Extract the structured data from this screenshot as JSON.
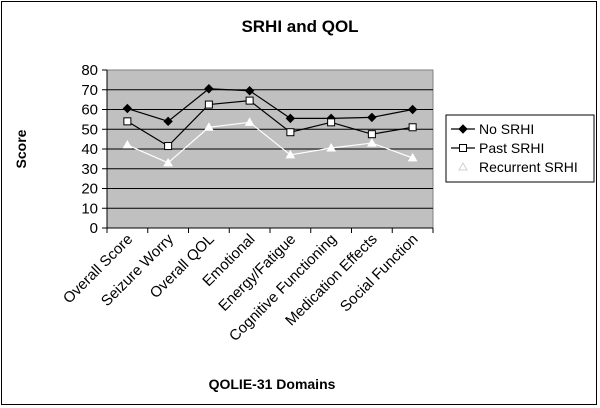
{
  "chart_data": {
    "type": "line",
    "title": "SRHI and QOL",
    "xlabel": "QOLIE-31 Domains",
    "ylabel": "Score",
    "ylim": [
      0,
      80
    ],
    "yticks": [
      "0",
      "10",
      "20",
      "30",
      "40",
      "50",
      "60",
      "70",
      "80"
    ],
    "grid": true,
    "legend_position": "right",
    "categories": [
      "Overall Score",
      "Seizure Worry",
      "Overall QOL",
      "Emotional",
      "Energy/Fatigue",
      "Cognitive Functioning",
      "Medication Effects",
      "Social Function"
    ],
    "series": [
      {
        "name": "No SRHI",
        "marker": "diamond",
        "color": "#000000",
        "values": [
          60.5,
          54,
          70.5,
          69.5,
          55.5,
          55.5,
          56,
          60
        ]
      },
      {
        "name": "Past SRHI",
        "marker": "square",
        "color": "#000000",
        "values": [
          54,
          41.5,
          62.5,
          64.5,
          48.5,
          53.5,
          47.5,
          51
        ]
      },
      {
        "name": "Recurrent SRHI",
        "marker": "triangle",
        "color": "#ffffff",
        "values": [
          42,
          33,
          51,
          53.5,
          37,
          40.5,
          43,
          35.5
        ]
      }
    ]
  }
}
